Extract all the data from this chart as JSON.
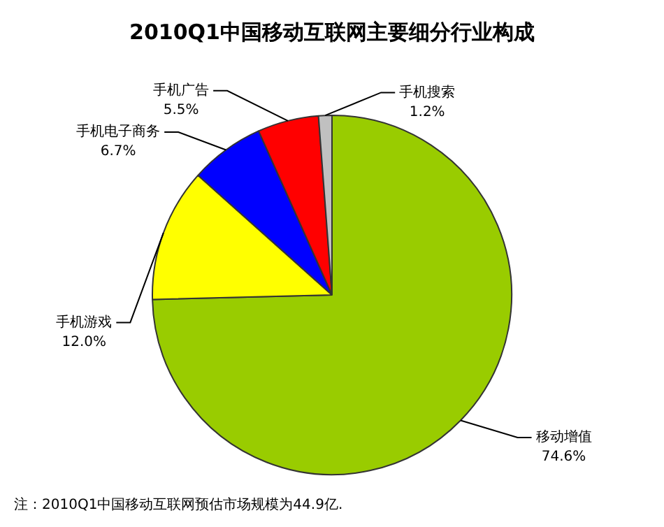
{
  "chart_data": {
    "type": "pie",
    "title": "2010Q1中国移动互联网主要细分行业构成",
    "categories": [
      "移动增值",
      "手机游戏",
      "手机电子商务",
      "手机广告",
      "手机搜索"
    ],
    "values": [
      74.6,
      12.0,
      6.7,
      5.5,
      1.2
    ],
    "value_labels": [
      "74.6%",
      "12.0%",
      "6.7%",
      "5.5%",
      "1.2%"
    ],
    "colors": [
      "#99cc00",
      "#ffff00",
      "#0000ff",
      "#ff0000",
      "#c0c0c0"
    ],
    "legend": false,
    "annotations": [
      "注：2010Q1中国移动互联网预估市场规模为44.9亿."
    ]
  }
}
